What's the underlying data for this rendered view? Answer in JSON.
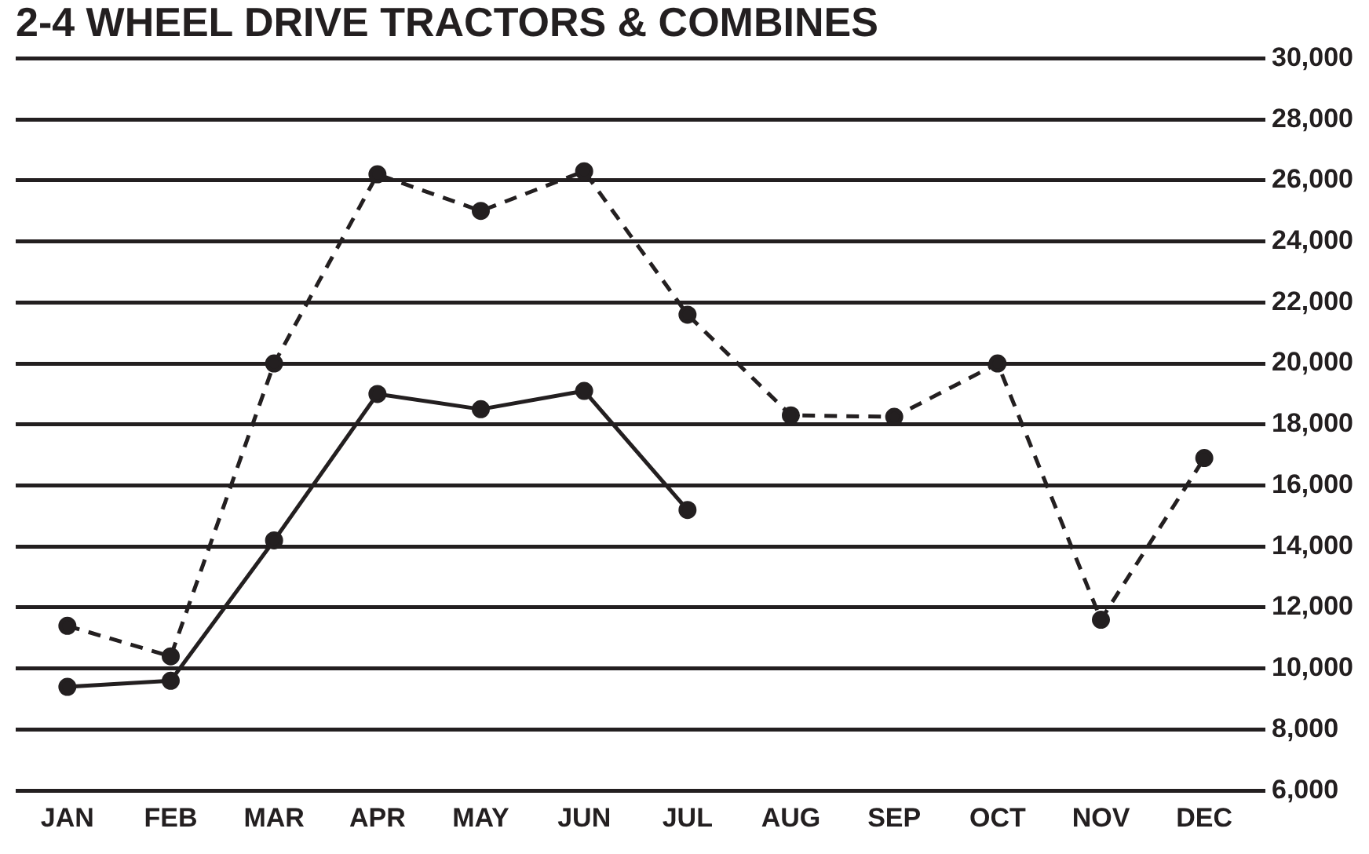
{
  "chart_data": {
    "type": "line",
    "title": "2-4 WHEEL DRIVE TRACTORS & COMBINES",
    "categories": [
      "JAN",
      "FEB",
      "MAR",
      "APR",
      "MAY",
      "JUN",
      "JUL",
      "AUG",
      "SEP",
      "OCT",
      "NOV",
      "DEC"
    ],
    "series": [
      {
        "color": "#231f20",
        "line_style": "dashed",
        "values": [
          11400,
          10400,
          20000,
          26200,
          25000,
          26300,
          21600,
          18300,
          18250,
          20000,
          11600,
          16900
        ]
      },
      {
        "color": "#231f20",
        "line_style": "solid",
        "values": [
          9400,
          9600,
          14200,
          19000,
          18500,
          19100,
          15200,
          null,
          null,
          null,
          null,
          null
        ]
      }
    ],
    "ylim": [
      6000,
      30000
    ],
    "yticks": [
      {
        "value": 6000,
        "label": "6,000"
      },
      {
        "value": 8000,
        "label": "8,000"
      },
      {
        "value": 10000,
        "label": "10,000"
      },
      {
        "value": 12000,
        "label": "12,000"
      },
      {
        "value": 14000,
        "label": "14,000"
      },
      {
        "value": 16000,
        "label": "16,000"
      },
      {
        "value": 18000,
        "label": "18,000"
      },
      {
        "value": 20000,
        "label": "20,000"
      },
      {
        "value": 22000,
        "label": "22,000"
      },
      {
        "value": 24000,
        "label": "24,000"
      },
      {
        "value": 26000,
        "label": "26,000"
      },
      {
        "value": 28000,
        "label": "28,000"
      },
      {
        "value": 30000,
        "label": "30,000"
      }
    ],
    "grid": "y",
    "legend": false,
    "marker": "circle"
  }
}
